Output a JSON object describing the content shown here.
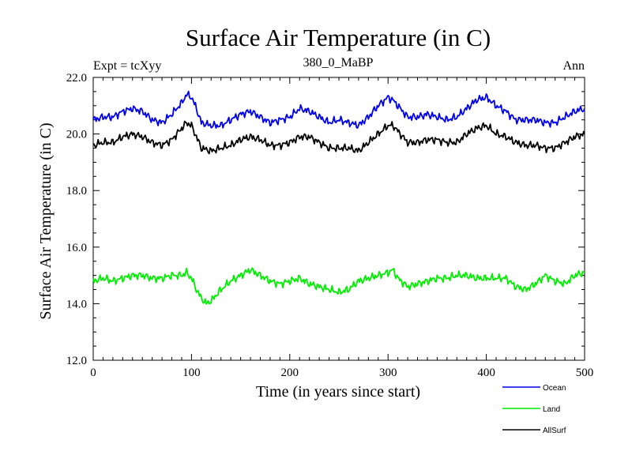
{
  "chart_data": {
    "type": "line",
    "title": "Surface Air Temperature (in C)",
    "subtitle": "380_0_MaBP",
    "left_label": "Expt = tcXyy",
    "right_label": "Ann",
    "xlabel": "Time (in years since start)",
    "ylabel": "Surface Air Temperature (in C)",
    "xlim": [
      0,
      500
    ],
    "ylim": [
      12.0,
      22.0
    ],
    "x_ticks": [
      0,
      100,
      200,
      300,
      400,
      500
    ],
    "y_ticks": [
      "12.0",
      "14.0",
      "16.0",
      "18.0",
      "20.0",
      "22.0"
    ],
    "grid": false,
    "legend_position": "bottom-right",
    "series": [
      {
        "name": "Ocean",
        "color": "#0000ee",
        "x": [
          0,
          10,
          20,
          30,
          40,
          50,
          60,
          70,
          80,
          90,
          95,
          100,
          105,
          110,
          120,
          130,
          140,
          150,
          160,
          170,
          180,
          190,
          200,
          210,
          220,
          230,
          240,
          250,
          260,
          270,
          280,
          290,
          300,
          305,
          310,
          320,
          330,
          340,
          350,
          360,
          370,
          380,
          390,
          400,
          410,
          420,
          430,
          440,
          450,
          460,
          470,
          480,
          490,
          500
        ],
        "values": [
          20.5,
          20.6,
          20.6,
          20.8,
          20.9,
          20.8,
          20.5,
          20.4,
          20.7,
          21.1,
          21.4,
          21.3,
          20.9,
          20.4,
          20.3,
          20.3,
          20.5,
          20.7,
          20.8,
          20.6,
          20.4,
          20.5,
          20.6,
          20.9,
          20.8,
          20.6,
          20.4,
          20.5,
          20.4,
          20.3,
          20.6,
          21.0,
          21.3,
          21.2,
          21.0,
          20.6,
          20.6,
          20.7,
          20.6,
          20.5,
          20.6,
          20.9,
          21.2,
          21.3,
          21.0,
          20.8,
          20.5,
          20.5,
          20.5,
          20.4,
          20.4,
          20.6,
          20.8,
          20.9
        ]
      },
      {
        "name": "Land",
        "color": "#00ee00",
        "x": [
          0,
          10,
          20,
          30,
          40,
          50,
          60,
          70,
          80,
          90,
          95,
          100,
          105,
          110,
          115,
          120,
          130,
          140,
          150,
          160,
          170,
          180,
          190,
          200,
          210,
          220,
          230,
          240,
          250,
          260,
          270,
          280,
          290,
          300,
          305,
          310,
          320,
          330,
          340,
          350,
          360,
          370,
          380,
          390,
          400,
          410,
          420,
          430,
          440,
          450,
          460,
          470,
          480,
          490,
          500
        ],
        "values": [
          14.8,
          14.9,
          14.8,
          14.9,
          15.0,
          15.0,
          14.9,
          14.9,
          15.0,
          15.0,
          15.1,
          14.9,
          14.5,
          14.2,
          14.0,
          14.1,
          14.5,
          14.8,
          15.0,
          15.2,
          15.0,
          14.8,
          14.7,
          14.8,
          14.9,
          14.7,
          14.6,
          14.5,
          14.4,
          14.5,
          14.8,
          14.9,
          15.0,
          15.1,
          15.2,
          14.9,
          14.6,
          14.7,
          14.8,
          14.9,
          14.9,
          15.0,
          15.0,
          14.9,
          14.9,
          14.9,
          14.9,
          14.6,
          14.5,
          14.7,
          15.0,
          14.8,
          14.7,
          15.0,
          15.1
        ]
      },
      {
        "name": "AllSurf",
        "color": "#000000",
        "x": [
          0,
          10,
          20,
          30,
          40,
          50,
          60,
          70,
          80,
          90,
          95,
          100,
          105,
          110,
          120,
          130,
          140,
          150,
          160,
          170,
          180,
          190,
          200,
          210,
          220,
          230,
          240,
          250,
          260,
          270,
          280,
          290,
          300,
          305,
          310,
          320,
          330,
          340,
          350,
          360,
          370,
          380,
          390,
          400,
          410,
          420,
          430,
          440,
          450,
          460,
          470,
          480,
          490,
          500
        ],
        "values": [
          19.6,
          19.7,
          19.7,
          19.9,
          20.0,
          19.9,
          19.7,
          19.6,
          19.8,
          20.2,
          20.4,
          20.3,
          19.9,
          19.5,
          19.4,
          19.5,
          19.6,
          19.8,
          19.9,
          19.8,
          19.6,
          19.6,
          19.7,
          19.9,
          19.9,
          19.7,
          19.5,
          19.5,
          19.5,
          19.4,
          19.7,
          20.0,
          20.3,
          20.3,
          20.1,
          19.7,
          19.7,
          19.8,
          19.8,
          19.7,
          19.7,
          20.0,
          20.2,
          20.3,
          20.0,
          19.9,
          19.7,
          19.6,
          19.6,
          19.5,
          19.5,
          19.7,
          19.9,
          20.0
        ]
      }
    ]
  }
}
